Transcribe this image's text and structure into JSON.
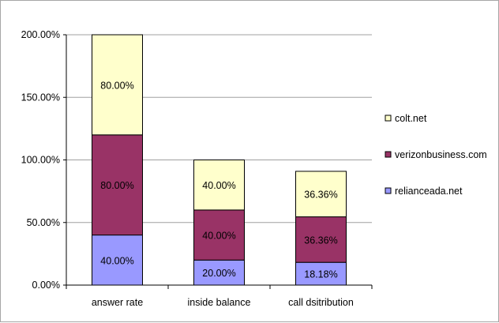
{
  "chart_data": {
    "type": "bar",
    "stacked": true,
    "categories": [
      "answer rate",
      "inside balance",
      "call dsitribution"
    ],
    "series": [
      {
        "name": "relianceada.net",
        "values": [
          40.0,
          20.0,
          18.18
        ],
        "labels": [
          "40.00%",
          "20.00%",
          "18.18%"
        ],
        "color": "#9999ff"
      },
      {
        "name": "verizonbusiness.com",
        "values": [
          80.0,
          40.0,
          36.36
        ],
        "labels": [
          "80.00%",
          "40.00%",
          "36.36%"
        ],
        "color": "#993366"
      },
      {
        "name": "colt.net",
        "values": [
          80.0,
          40.0,
          36.36
        ],
        "labels": [
          "80.00%",
          "40.00%",
          "36.36%"
        ],
        "color": "#ffffcc"
      }
    ],
    "ylim": [
      0,
      200
    ],
    "yticks": [
      0,
      50,
      100,
      150,
      200
    ],
    "ytick_labels": [
      "0.00%",
      "50.00%",
      "100.00%",
      "150.00%",
      "200.00%"
    ],
    "legend_order": [
      "colt.net",
      "verizonbusiness.com",
      "relianceada.net"
    ],
    "legend_position": "right",
    "grid": true
  }
}
